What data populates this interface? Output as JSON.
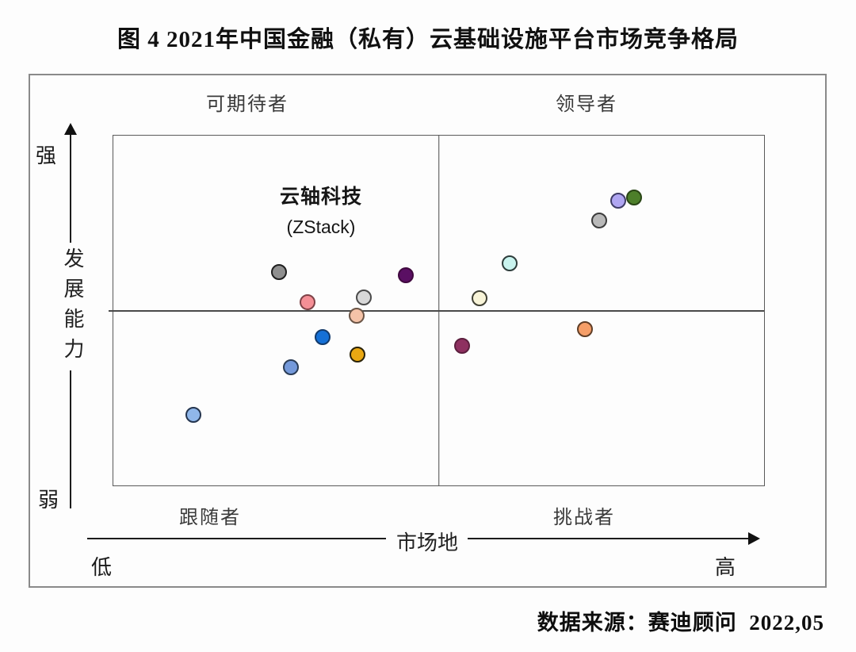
{
  "title": "图 4 2021年中国金融（私有）云基础设施平台市场竞争格局",
  "quadrants": {
    "top_left": "可期待者",
    "top_right": "领导者",
    "bottom_left": "跟随者",
    "bottom_right": "挑战者"
  },
  "y_axis": {
    "title": "发展能力",
    "top_label": "强",
    "bottom_label": "弱"
  },
  "x_axis": {
    "title": "市场地",
    "left_label": "低",
    "right_label": "高"
  },
  "annotation": {
    "line1": "云轴科技",
    "line2": "(ZStack)"
  },
  "source": "数据来源：赛迪顾问  2022,05",
  "chart_data": {
    "type": "scatter",
    "title": "2021年中国金融（私有）云基础设施平台市场竞争格局",
    "xlabel": "市场地",
    "ylabel": "发展能力",
    "x_range_labels": [
      "低",
      "高"
    ],
    "y_range_labels": [
      "弱",
      "强"
    ],
    "quadrant_labels": [
      "可期待者",
      "领导者",
      "跟随者",
      "挑战者"
    ],
    "annotation": {
      "text": "云轴科技 (ZStack)",
      "quadrant": "可期待者"
    },
    "legend": "none",
    "grid": false,
    "axis_scale_note": "x and y are unlabeled relative scales 0-100 (estimated from dot positions; y measured from bottom)",
    "points": [
      {
        "name": "blue-light",
        "x": 12.3,
        "y": 20.1,
        "fill": "#90b7ea",
        "stroke": "#24354f"
      },
      {
        "name": "gray-dark",
        "x": 25.5,
        "y": 60.9,
        "fill": "#8f8f8f",
        "stroke": "#1f1f1f"
      },
      {
        "name": "blue-medium",
        "x": 27.3,
        "y": 33.9,
        "fill": "#7499da",
        "stroke": "#2a3c55"
      },
      {
        "name": "pink-salmon",
        "x": 29.8,
        "y": 52.4,
        "fill": "#f58f96",
        "stroke": "#7e4247"
      },
      {
        "name": "blue-strong",
        "x": 32.2,
        "y": 42.4,
        "fill": "#1570d6",
        "stroke": "#123a6b"
      },
      {
        "name": "peach",
        "x": 37.4,
        "y": 48.5,
        "fill": "#f5c3a8",
        "stroke": "#6b5546"
      },
      {
        "name": "gold",
        "x": 37.5,
        "y": 37.5,
        "fill": "#eaa812",
        "stroke": "#2a2208"
      },
      {
        "name": "gray-light",
        "x": 38.5,
        "y": 53.7,
        "fill": "#d8d8d8",
        "stroke": "#4a4a4a"
      },
      {
        "name": "purple-dark",
        "x": 45.0,
        "y": 60.0,
        "fill": "#5a0f63",
        "stroke": "#40093f"
      },
      {
        "name": "maroon",
        "x": 53.6,
        "y": 40.0,
        "fill": "#8e3060",
        "stroke": "#5c1f3e"
      },
      {
        "name": "cream",
        "x": 56.3,
        "y": 53.5,
        "fill": "#f8f4d8",
        "stroke": "#3f3f33"
      },
      {
        "name": "cyan-light",
        "x": 60.9,
        "y": 63.4,
        "fill": "#c9f4ef",
        "stroke": "#2e3d3c"
      },
      {
        "name": "orange",
        "x": 72.5,
        "y": 44.7,
        "fill": "#f59e68",
        "stroke": "#5f3d26"
      },
      {
        "name": "gray-medium",
        "x": 74.7,
        "y": 75.8,
        "fill": "#b9b9b9",
        "stroke": "#3c3c3c"
      },
      {
        "name": "periwinkle",
        "x": 77.6,
        "y": 81.3,
        "fill": "#b0a6f2",
        "stroke": "#3f3c66"
      },
      {
        "name": "green",
        "x": 80.0,
        "y": 82.4,
        "fill": "#4d7f2a",
        "stroke": "#294515"
      }
    ]
  }
}
